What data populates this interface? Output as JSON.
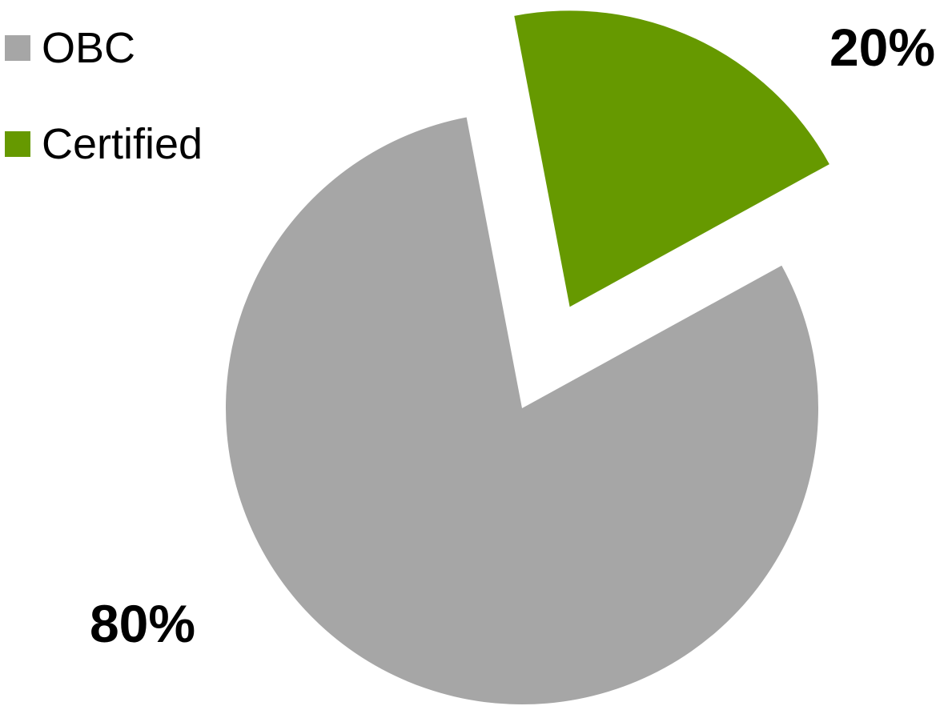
{
  "chart_data": {
    "type": "pie",
    "exploded": true,
    "legend_position": "top-left",
    "series": [
      {
        "name": "OBC",
        "value": 80,
        "label": "80%",
        "color": "#a6a6a6"
      },
      {
        "name": "Certified",
        "value": 20,
        "label": "20%",
        "color": "#669900"
      }
    ]
  }
}
